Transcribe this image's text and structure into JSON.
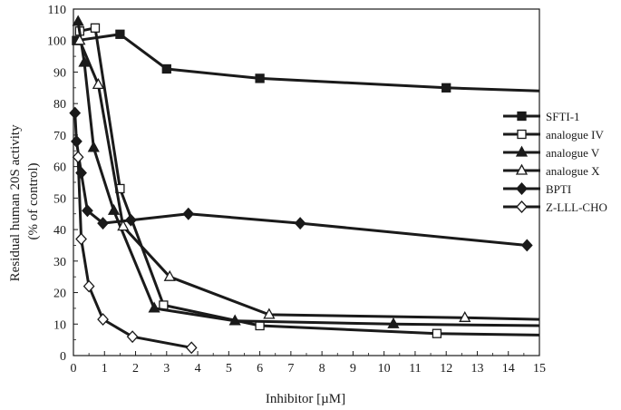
{
  "chart_data": {
    "type": "line",
    "title": "",
    "xlabel": "Inhibitor [µM]",
    "ylabel_lines": [
      "Residual human 20S activity",
      "(% of control)"
    ],
    "xlim": [
      0,
      15
    ],
    "ylim": [
      0,
      110
    ],
    "xticks": [
      0,
      1,
      2,
      3,
      4,
      5,
      6,
      7,
      8,
      9,
      10,
      11,
      12,
      13,
      14,
      15
    ],
    "yticks": [
      0,
      10,
      20,
      30,
      40,
      50,
      60,
      70,
      80,
      90,
      100,
      110
    ],
    "grid": false,
    "legend_position": "right",
    "series": [
      {
        "name": "SFTI-1",
        "marker": "square-filled",
        "points": [
          [
            0.1,
            100
          ],
          [
            1.5,
            102
          ],
          [
            3.0,
            91
          ],
          [
            6.0,
            88
          ],
          [
            12.0,
            85
          ],
          [
            15.0,
            84
          ]
        ],
        "marker_points": [
          [
            0.1,
            100
          ],
          [
            1.5,
            102
          ],
          [
            3.0,
            91
          ],
          [
            6.0,
            88
          ],
          [
            12.0,
            85
          ]
        ]
      },
      {
        "name": "analogue IV",
        "marker": "square-open",
        "points": [
          [
            0.2,
            103
          ],
          [
            0.7,
            104
          ],
          [
            1.5,
            53
          ],
          [
            2.9,
            16
          ],
          [
            6.0,
            9.5
          ],
          [
            11.7,
            7
          ],
          [
            15.0,
            6.5
          ]
        ],
        "marker_points": [
          [
            0.2,
            103
          ],
          [
            0.7,
            104
          ],
          [
            1.5,
            53
          ],
          [
            2.9,
            16
          ],
          [
            6.0,
            9.5
          ],
          [
            11.7,
            7
          ]
        ]
      },
      {
        "name": "analogue V",
        "marker": "triangle-filled",
        "points": [
          [
            0.15,
            106
          ],
          [
            0.35,
            93
          ],
          [
            0.65,
            66
          ],
          [
            1.3,
            46
          ],
          [
            2.6,
            15
          ],
          [
            5.2,
            11
          ],
          [
            10.3,
            10
          ],
          [
            15.0,
            9.5
          ]
        ],
        "marker_points": [
          [
            0.15,
            106
          ],
          [
            0.35,
            93
          ],
          [
            0.65,
            66
          ],
          [
            1.3,
            46
          ],
          [
            2.6,
            15
          ],
          [
            5.2,
            11
          ],
          [
            10.3,
            10
          ]
        ]
      },
      {
        "name": "analogue X",
        "marker": "triangle-open",
        "points": [
          [
            0.2,
            100
          ],
          [
            0.8,
            86
          ],
          [
            1.6,
            41
          ],
          [
            3.1,
            25
          ],
          [
            6.3,
            13
          ],
          [
            12.6,
            12
          ],
          [
            15.0,
            11.5
          ]
        ],
        "marker_points": [
          [
            0.2,
            100
          ],
          [
            0.8,
            86
          ],
          [
            1.6,
            41
          ],
          [
            3.1,
            25
          ],
          [
            6.3,
            13
          ],
          [
            12.6,
            12
          ]
        ]
      },
      {
        "name": "BPTI",
        "marker": "diamond-filled",
        "points": [
          [
            0.05,
            77
          ],
          [
            0.1,
            68
          ],
          [
            0.25,
            58
          ],
          [
            0.45,
            46
          ],
          [
            0.95,
            42
          ],
          [
            1.85,
            43
          ],
          [
            3.7,
            45
          ],
          [
            7.3,
            42
          ],
          [
            14.6,
            35
          ]
        ],
        "marker_points": [
          [
            0.05,
            77
          ],
          [
            0.1,
            68
          ],
          [
            0.25,
            58
          ],
          [
            0.45,
            46
          ],
          [
            0.95,
            42
          ],
          [
            1.85,
            43
          ],
          [
            3.7,
            45
          ],
          [
            7.3,
            42
          ],
          [
            14.6,
            35
          ]
        ]
      },
      {
        "name": "Z-LLL-CHO",
        "marker": "diamond-open",
        "points": [
          [
            0.15,
            63
          ],
          [
            0.25,
            37
          ],
          [
            0.5,
            22
          ],
          [
            0.95,
            11.5
          ],
          [
            1.9,
            6
          ],
          [
            3.8,
            2.5
          ]
        ],
        "marker_points": [
          [
            0.15,
            63
          ],
          [
            0.25,
            37
          ],
          [
            0.5,
            22
          ],
          [
            0.95,
            11.5
          ],
          [
            1.9,
            6
          ],
          [
            3.8,
            2.5
          ]
        ]
      }
    ]
  }
}
